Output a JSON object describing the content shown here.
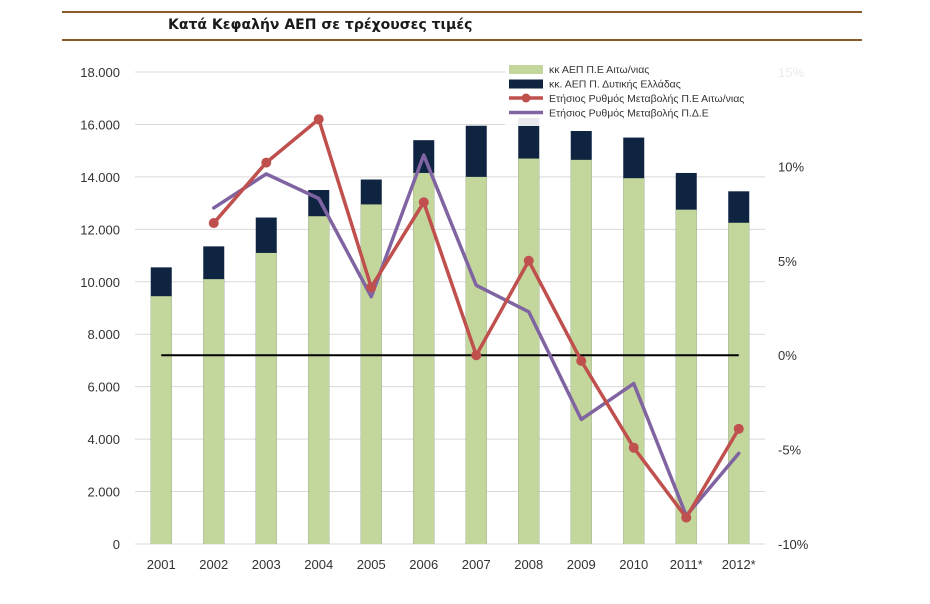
{
  "chart_data": {
    "type": "bar",
    "title": "Κατά Κεφαλήν ΑΕΠ σε τρέχουσες τιμές",
    "categories": [
      "2001",
      "2002",
      "2003",
      "2004",
      "2005",
      "2006",
      "2007",
      "2008",
      "2009",
      "2010",
      "2011*",
      "2012*"
    ],
    "y_left": {
      "ylim": [
        0,
        18000
      ],
      "ticks": [
        "0",
        "2.000",
        "4.000",
        "6.000",
        "8.000",
        "10.000",
        "12.000",
        "14.000",
        "16.000",
        "18.000"
      ],
      "tick_values": [
        0,
        2000,
        4000,
        6000,
        8000,
        10000,
        12000,
        14000,
        16000,
        18000
      ]
    },
    "y_right": {
      "ylim": [
        -10,
        15
      ],
      "ticks": [
        "-10%",
        "-5%",
        "0%",
        "5%",
        "10%",
        "15%"
      ],
      "tick_values": [
        -10,
        -5,
        0,
        5,
        10,
        15
      ]
    },
    "stacked_series": [
      {
        "name": "κκ ΑΕΠ Π.Ε Αιτω/νιας",
        "color": "#C3D69B",
        "values": [
          9450,
          10100,
          11100,
          12500,
          12950,
          14150,
          14000,
          14700,
          14650,
          13950,
          12750,
          12250
        ]
      },
      {
        "name": "κκ. ΑΕΠ Π. Δυτικής Ελλάδας",
        "color": "#0F2441",
        "values": [
          10550,
          11350,
          12450,
          13500,
          13900,
          15400,
          15950,
          16250,
          15750,
          15500,
          14150,
          13450
        ]
      }
    ],
    "line_series": [
      {
        "name": "Ετήσιος Ρυθμός Μεταβολής Π.Ε Αιτω/νιας",
        "color": "#C0504D",
        "markers": true,
        "values": [
          null,
          7.0,
          10.2,
          12.5,
          3.6,
          8.1,
          0.0,
          5.0,
          -0.3,
          -4.9,
          -8.6,
          -3.9
        ]
      },
      {
        "name": "Ετήσιος Ρυθμός Μεταβολής Π.Δ.Ε",
        "color": "#8064A2",
        "markers": false,
        "values": [
          null,
          7.8,
          9.6,
          8.3,
          3.1,
          10.6,
          3.7,
          2.3,
          -3.4,
          -1.5,
          -8.5,
          -5.2
        ]
      }
    ],
    "reference_line": {
      "value_right_axis": 0,
      "color": "#000000"
    },
    "legend_position": "top-right",
    "grid": true
  }
}
